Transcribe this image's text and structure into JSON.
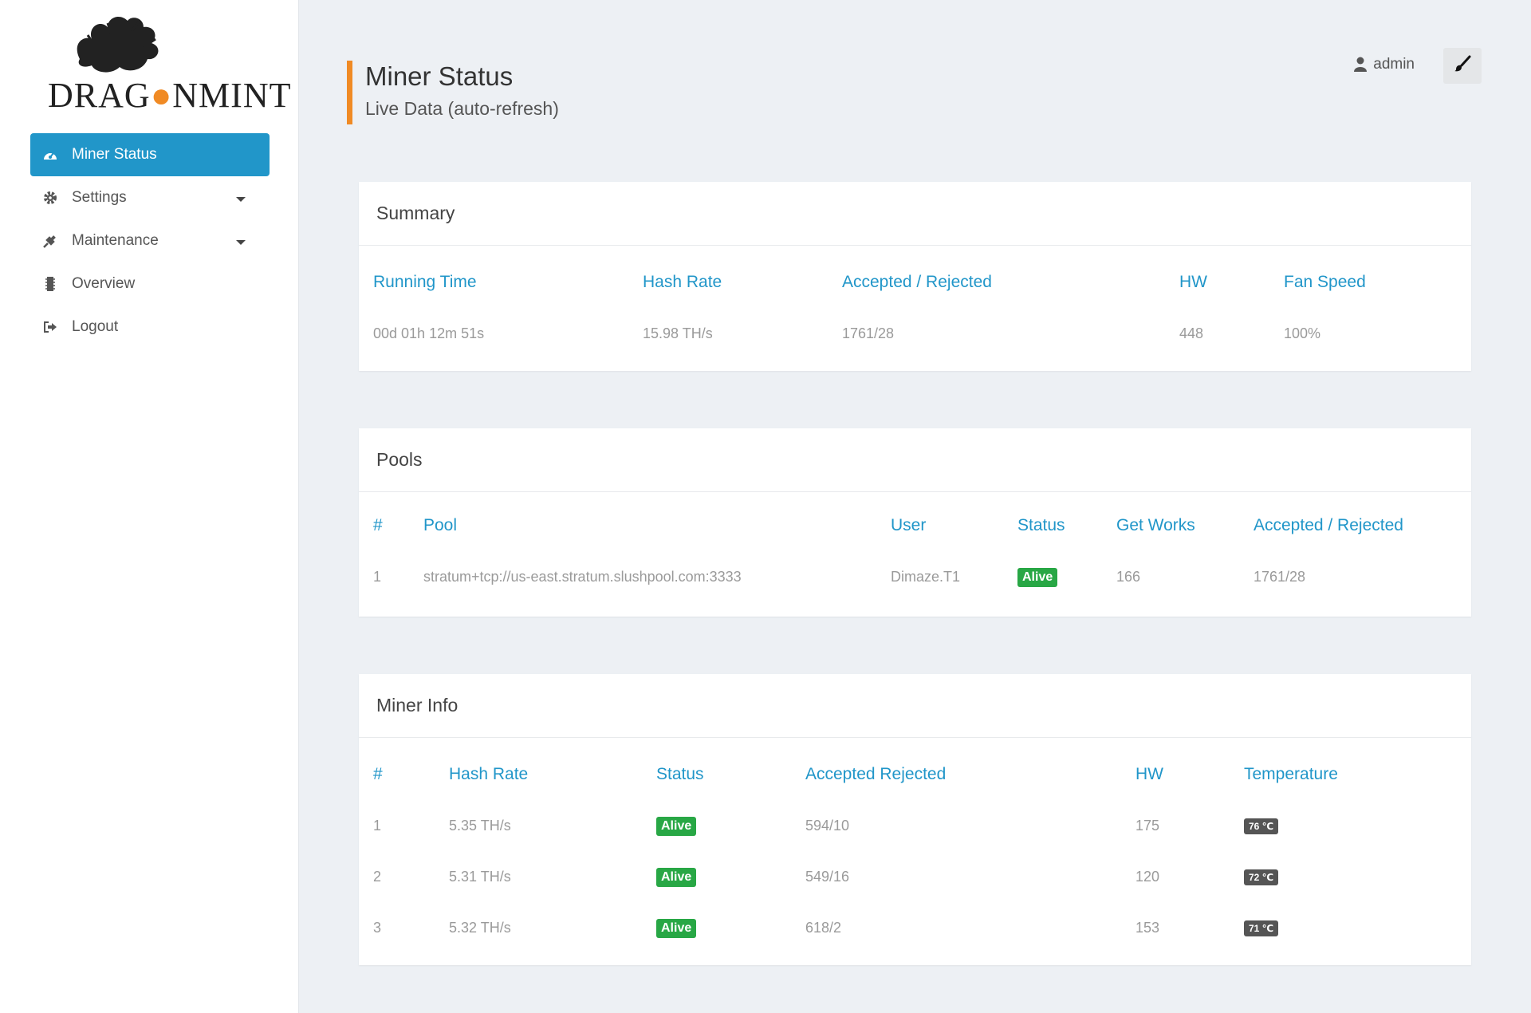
{
  "brand": {
    "logo_text_left": "DRAG",
    "logo_text_right": "NMINT"
  },
  "sidebar": {
    "items": [
      {
        "label": "Miner Status",
        "icon": "dashboard-icon",
        "active": true
      },
      {
        "label": "Settings",
        "icon": "gear-icon",
        "has_submenu": true
      },
      {
        "label": "Maintenance",
        "icon": "plug-icon",
        "has_submenu": true
      },
      {
        "label": "Overview",
        "icon": "chip-icon"
      },
      {
        "label": "Logout",
        "icon": "sign-out-icon"
      }
    ]
  },
  "header": {
    "title": "Miner Status",
    "subtitle": "Live Data (auto-refresh)",
    "user": "admin"
  },
  "summary": {
    "title": "Summary",
    "columns": [
      "Running Time",
      "Hash Rate",
      "Accepted / Rejected",
      "HW",
      "Fan Speed"
    ],
    "row": [
      "00d 01h 12m 51s",
      "15.98 TH/s",
      "1761/28",
      "448",
      "100%"
    ]
  },
  "pools": {
    "title": "Pools",
    "columns": [
      "#",
      "Pool",
      "User",
      "Status",
      "Get Works",
      "Accepted / Rejected"
    ],
    "rows": [
      [
        "1",
        "stratum+tcp://us-east.stratum.slushpool.com:3333",
        "Dimaze.T1",
        "Alive",
        "166",
        "1761/28"
      ]
    ]
  },
  "miner_info": {
    "title": "Miner Info",
    "columns": [
      "#",
      "Hash Rate",
      "Status",
      "Accepted Rejected",
      "HW",
      "Temperature"
    ],
    "rows": [
      [
        "1",
        "5.35 TH/s",
        "Alive",
        "594/10",
        "175",
        "76 ℃"
      ],
      [
        "2",
        "5.31 TH/s",
        "Alive",
        "549/16",
        "120",
        "72 ℃"
      ],
      [
        "3",
        "5.32 TH/s",
        "Alive",
        "618/2",
        "153",
        "71 ℃"
      ]
    ]
  },
  "colors": {
    "accent": "#2196c9",
    "brand_orange": "#f08a24",
    "alive": "#28a745",
    "temp_badge": "#555555"
  }
}
